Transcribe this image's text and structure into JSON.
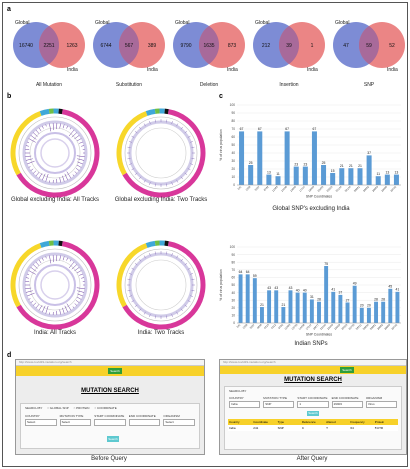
{
  "panels": {
    "a": "a",
    "b": "b",
    "c": "c",
    "d": "d"
  },
  "colors": {
    "global": "#6f7fd0",
    "india": "#e87070",
    "overlap": "#a86a9a",
    "bar": "#5b9bd5",
    "yellow": "#f7d72a",
    "magenta": "#d8379a",
    "green": "#6fbf44",
    "cyan": "#3fa8d8"
  },
  "venns": [
    {
      "title": "All Mutation",
      "global_label": "Global",
      "india_label": "India",
      "left": "16740",
      "mid": "2251",
      "right": "1263"
    },
    {
      "title": "Substitution",
      "global_label": "Global",
      "india_label": "India",
      "left": "6744",
      "mid": "567",
      "right": "389"
    },
    {
      "title": "Deletion",
      "global_label": "Global",
      "india_label": "India",
      "left": "9790",
      "mid": "1635",
      "right": "873"
    },
    {
      "title": "Insertion",
      "global_label": "Global",
      "india_label": "India",
      "left": "212",
      "mid": "39",
      "right": "1"
    },
    {
      "title": "SNP",
      "global_label": "Global",
      "india_label": "India",
      "left": "47",
      "mid": "59",
      "right": "52"
    }
  ],
  "circos": [
    {
      "caption": "Global excluding India: All Tracks"
    },
    {
      "caption": "Global excluding India: Two Tracks"
    },
    {
      "caption": "India: All Tracks"
    },
    {
      "caption": "India: Two Tracks"
    }
  ],
  "chart_data": [
    {
      "type": "bar",
      "title": "Global SNP's excluding India",
      "xlabel": "SNP Coordinates",
      "ylabel": "% of virus population",
      "ylim": [
        0,
        100
      ],
      "categories": [
        "241",
        "1059",
        "3037",
        "8782",
        "11083",
        "14408",
        "14805",
        "17747",
        "18060",
        "23403",
        "25563",
        "26144",
        "28144",
        "28881",
        "28882",
        "28883",
        "29095",
        "29742"
      ],
      "values": [
        67,
        25,
        67,
        13,
        11,
        67,
        23,
        23,
        67,
        25,
        15,
        21,
        21,
        21,
        37,
        11,
        13,
        13
      ]
    },
    {
      "type": "bar",
      "title": "Indian SNPs",
      "xlabel": "SNP Coordinates",
      "ylabel": "% of virus population",
      "ylim": [
        0,
        100
      ],
      "categories": [
        "241",
        "1059",
        "3037",
        "4809",
        "6310",
        "6312",
        "8782",
        "11083",
        "13730",
        "14408",
        "17247",
        "18877",
        "22444",
        "23403",
        "23929",
        "25563",
        "26735",
        "28311",
        "28854",
        "28881",
        "28882",
        "28883",
        "29742"
      ],
      "values": [
        64,
        64,
        59,
        21,
        43,
        43,
        21,
        43,
        40,
        40,
        31,
        28,
        75,
        41,
        37,
        27,
        49,
        20,
        20,
        28,
        28,
        45,
        41
      ]
    }
  ],
  "screens": [
    {
      "caption": "Before Query",
      "heading": "MUTATION SEARCH",
      "url": "http://www.covid19-mutation.org/search",
      "nav_button": "Search",
      "search_by_label": "SEARCH BY",
      "radio_labels": [
        "GLOBAL SNP",
        "PROTEIN",
        "COORDINATE"
      ],
      "fields": [
        {
          "label": "COUNTRY",
          "value": "Select"
        },
        {
          "label": "MUTATION TYPE",
          "value": "Select"
        },
        {
          "label": "START COORDINATE",
          "value": ""
        },
        {
          "label": "END COORDINATE",
          "value": ""
        },
        {
          "label": "ORGANISM",
          "value": "Select"
        }
      ],
      "button": "Search"
    },
    {
      "caption": "After Query",
      "heading": "MUTATION SEARCH",
      "url": "http://www.covid19-mutation.org/search",
      "nav_button": "Search",
      "search_by_label": "SEARCH BY",
      "fields": [
        {
          "label": "COUNTRY",
          "value": "India"
        },
        {
          "label": "MUTATION TYPE",
          "value": "SNP"
        },
        {
          "label": "START COORDINATE",
          "value": "1"
        },
        {
          "label": "END COORDINATE",
          "value": "29903"
        },
        {
          "label": "ORGANISM",
          "value": "Virus"
        }
      ],
      "button": "Search",
      "table_headers": [
        "Country",
        "Coordinate",
        "Type",
        "Reference",
        "Altered",
        "Frequency",
        "Protein"
      ],
      "table_row": [
        "India",
        "241",
        "SNP",
        "C",
        "T",
        "64",
        "5'UTR"
      ]
    }
  ]
}
